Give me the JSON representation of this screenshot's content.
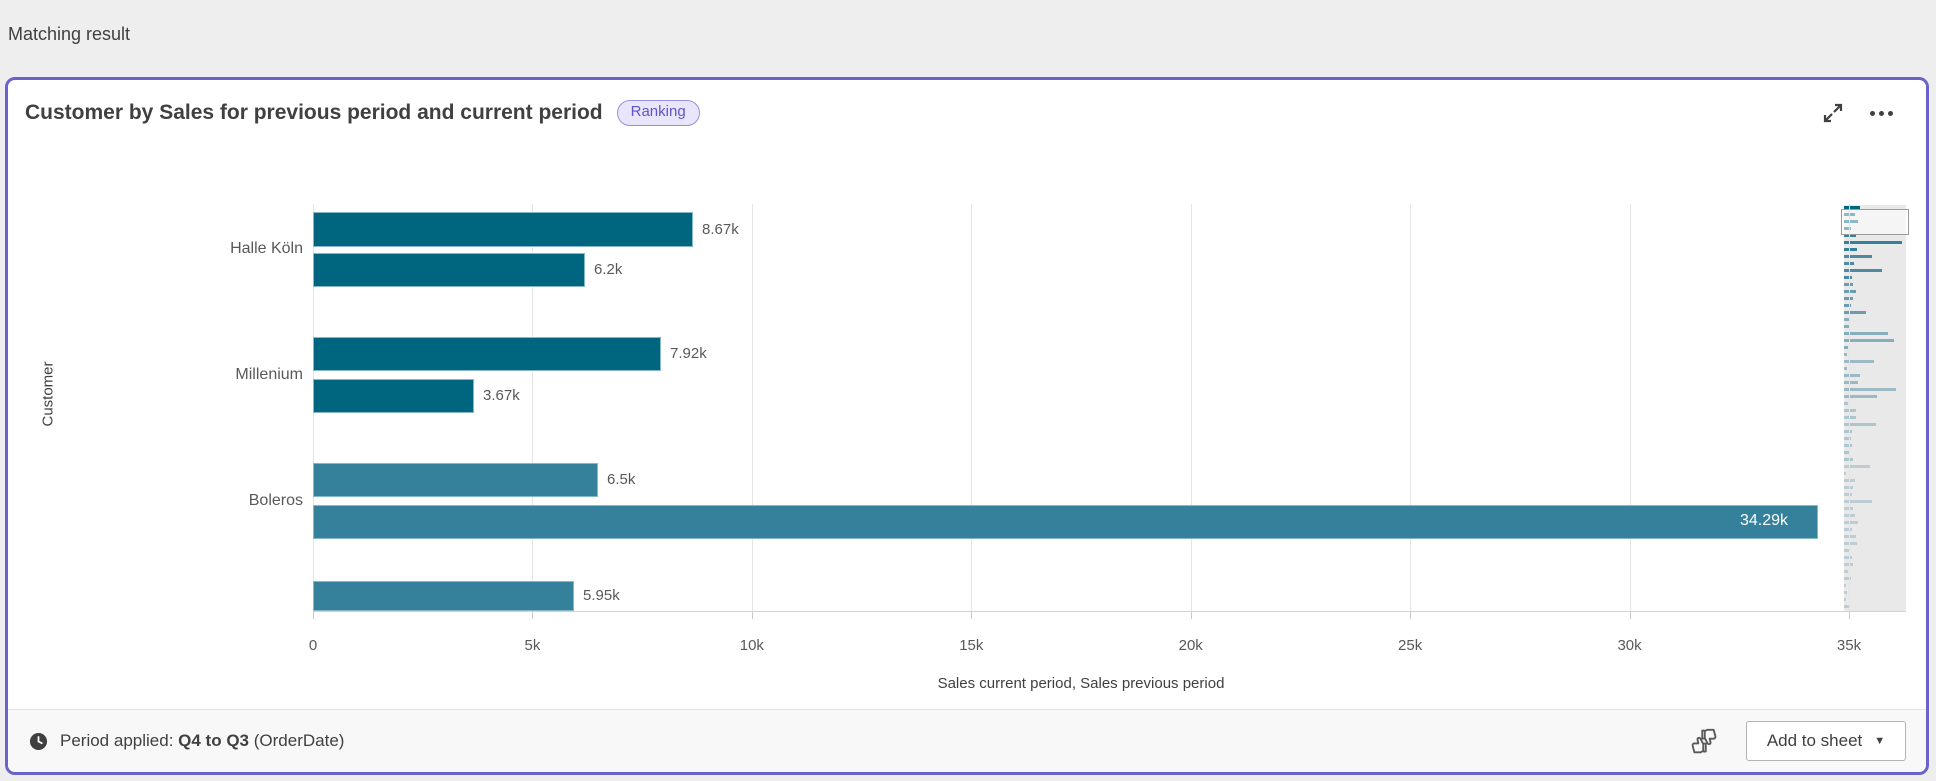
{
  "page": {
    "header": "Matching result"
  },
  "card": {
    "title": "Customer by Sales for previous period and current period",
    "badge": "Ranking",
    "footer": {
      "period_label": "Period applied:",
      "period_value": "Q4 to Q3",
      "period_suffix": "(OrderDate)",
      "add_to_sheet": "Add to sheet"
    }
  },
  "chart_data": {
    "type": "bar",
    "orientation": "horizontal",
    "title": "Customer by Sales for previous period and current period",
    "xlabel": "Sales current period, Sales previous period",
    "ylabel": "Customer",
    "xlim": [
      0,
      35000
    ],
    "xticks": [
      "0",
      "5k",
      "10k",
      "15k",
      "20k",
      "25k",
      "30k",
      "35k"
    ],
    "grid": true,
    "series_names": [
      "Sales current period",
      "Sales previous period"
    ],
    "categories": [
      "Halle Köln",
      "Millenium",
      "Boleros"
    ],
    "bars": [
      {
        "group": "Halle Köln",
        "series": "Sales current period",
        "value": 8670,
        "label": "8.67k",
        "color": "#00657f"
      },
      {
        "group": "Halle Köln",
        "series": "Sales previous period",
        "value": 6200,
        "label": "6.2k",
        "color": "#00657f"
      },
      {
        "group": "Millenium",
        "series": "Sales current period",
        "value": 7920,
        "label": "7.92k",
        "color": "#00657f"
      },
      {
        "group": "Millenium",
        "series": "Sales previous period",
        "value": 3670,
        "label": "3.67k",
        "color": "#00657f"
      },
      {
        "group": "Boleros",
        "series": "Sales current period",
        "value": 6500,
        "label": "6.5k",
        "color": "#35809b"
      },
      {
        "group": "Boleros",
        "series": "Sales previous period",
        "value": 34290,
        "label": "34.29k",
        "color": "#35809b",
        "label_inside": true
      },
      {
        "group": "",
        "series": "Sales current period",
        "value": 5950,
        "label": "5.95k",
        "color": "#35809b",
        "clipped": true
      }
    ],
    "minimap": {
      "palette": [
        "#00657f",
        "#35809b",
        "#4f89a1",
        "#6b9cb0",
        "#87aebc",
        "#9cbac6",
        "#aec6cf",
        "#bccdd5"
      ],
      "bars": [
        [
          16,
          0
        ],
        [
          11,
          0
        ],
        [
          14,
          0
        ],
        [
          7,
          0
        ],
        [
          12,
          1
        ],
        [
          58,
          1
        ],
        [
          13,
          1
        ],
        [
          28,
          2
        ],
        [
          10,
          2
        ],
        [
          38,
          2
        ],
        [
          8,
          2
        ],
        [
          9,
          3
        ],
        [
          12,
          3
        ],
        [
          9,
          3
        ],
        [
          7,
          3
        ],
        [
          22,
          3
        ],
        [
          6,
          4
        ],
        [
          5,
          4
        ],
        [
          44,
          4
        ],
        [
          50,
          4
        ],
        [
          4,
          4
        ],
        [
          3,
          5
        ],
        [
          30,
          5
        ],
        [
          3,
          5
        ],
        [
          16,
          5
        ],
        [
          14,
          5
        ],
        [
          52,
          5
        ],
        [
          33,
          5
        ],
        [
          4,
          6
        ],
        [
          12,
          6
        ],
        [
          12,
          6
        ],
        [
          32,
          6
        ],
        [
          8,
          6
        ],
        [
          7,
          6
        ],
        [
          8,
          6
        ],
        [
          5,
          6
        ],
        [
          9,
          6
        ],
        [
          26,
          7
        ],
        [
          2,
          7
        ],
        [
          11,
          7
        ],
        [
          9,
          7
        ],
        [
          8,
          7
        ],
        [
          28,
          7
        ],
        [
          9,
          7
        ],
        [
          11,
          7
        ],
        [
          14,
          7
        ],
        [
          8,
          7
        ],
        [
          12,
          7
        ],
        [
          13,
          7
        ],
        [
          6,
          7
        ],
        [
          8,
          7
        ],
        [
          9,
          7
        ],
        [
          4,
          7
        ],
        [
          7,
          7
        ],
        [
          2,
          7
        ],
        [
          3,
          7
        ],
        [
          2,
          7
        ],
        [
          5,
          7
        ]
      ],
      "viewport": {
        "top": 4,
        "height": 26
      }
    }
  },
  "colors": {
    "accent_border": "#6a63cc",
    "bar_dark": "#00657f",
    "bar_light": "#35809b"
  }
}
